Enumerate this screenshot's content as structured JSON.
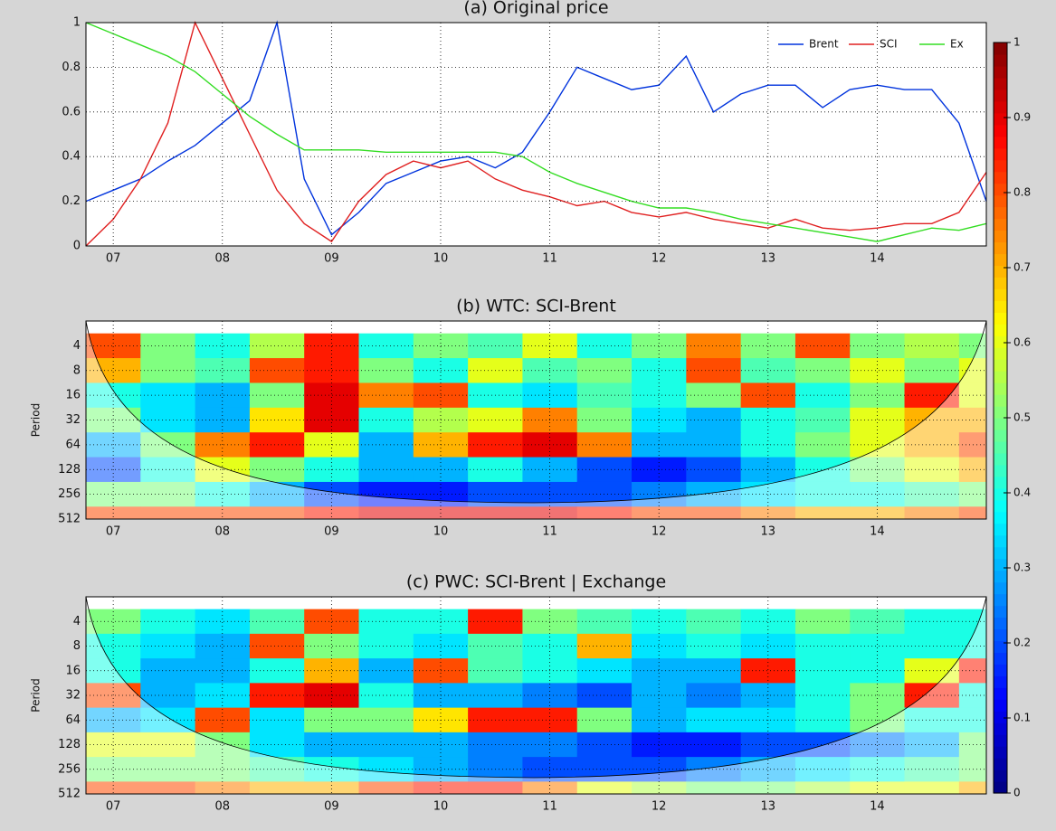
{
  "chart_data": [
    {
      "type": "line",
      "title": "(a) Original price",
      "x": [
        2006.75,
        2007,
        2007.25,
        2007.5,
        2007.75,
        2008,
        2008.25,
        2008.5,
        2008.75,
        2009,
        2009.25,
        2009.5,
        2009.75,
        2010,
        2010.25,
        2010.5,
        2010.75,
        2011,
        2011.25,
        2011.5,
        2011.75,
        2012,
        2012.25,
        2012.5,
        2012.75,
        2013,
        2013.25,
        2013.5,
        2013.75,
        2014,
        2014.25,
        2014.5,
        2014.75,
        2015
      ],
      "series": [
        {
          "name": "Brent",
          "color": "#0033dd",
          "values": [
            0.2,
            0.25,
            0.3,
            0.38,
            0.45,
            0.55,
            0.65,
            1.0,
            0.3,
            0.05,
            0.15,
            0.28,
            0.33,
            0.38,
            0.4,
            0.35,
            0.42,
            0.6,
            0.8,
            0.75,
            0.7,
            0.72,
            0.85,
            0.6,
            0.68,
            0.72,
            0.72,
            0.62,
            0.7,
            0.72,
            0.7,
            0.7,
            0.55,
            0.2
          ]
        },
        {
          "name": "SCI",
          "color": "#e02020",
          "values": [
            0,
            0.12,
            0.3,
            0.55,
            1.0,
            0.75,
            0.5,
            0.25,
            0.1,
            0.02,
            0.2,
            0.32,
            0.38,
            0.35,
            0.38,
            0.3,
            0.25,
            0.22,
            0.18,
            0.2,
            0.15,
            0.13,
            0.15,
            0.12,
            0.1,
            0.08,
            0.12,
            0.08,
            0.07,
            0.08,
            0.1,
            0.1,
            0.15,
            0.33
          ]
        },
        {
          "name": "Ex",
          "color": "#33dd22",
          "values": [
            1.0,
            0.95,
            0.9,
            0.85,
            0.78,
            0.68,
            0.58,
            0.5,
            0.43,
            0.43,
            0.43,
            0.42,
            0.42,
            0.42,
            0.42,
            0.42,
            0.4,
            0.33,
            0.28,
            0.24,
            0.2,
            0.17,
            0.17,
            0.15,
            0.12,
            0.1,
            0.08,
            0.06,
            0.04,
            0.02,
            0.05,
            0.08,
            0.07,
            0.1
          ]
        }
      ],
      "xlim": [
        2006.75,
        2015
      ],
      "xticks": [
        {
          "value": 2007,
          "label": "07"
        },
        {
          "value": 2008,
          "label": "08"
        },
        {
          "value": 2009,
          "label": "09"
        },
        {
          "value": 2010,
          "label": "10"
        },
        {
          "value": 2011,
          "label": "11"
        },
        {
          "value": 2012,
          "label": "12"
        },
        {
          "value": 2013,
          "label": "13"
        },
        {
          "value": 2014,
          "label": "14"
        }
      ],
      "ylim": [
        0,
        1
      ],
      "yticks": [
        0,
        0.2,
        0.4,
        0.6,
        0.8,
        1
      ],
      "grid": true,
      "legend": "upper right"
    },
    {
      "type": "heatmap",
      "title": "(b) WTC: SCI-Brent",
      "ylabel": "Period",
      "x": [
        2007,
        2007.5,
        2008,
        2008.5,
        2009,
        2009.5,
        2010,
        2010.5,
        2011,
        2011.5,
        2012,
        2012.5,
        2013,
        2013.5,
        2014,
        2014.5,
        2015
      ],
      "y": [
        4,
        8,
        16,
        32,
        64,
        128,
        256,
        512
      ],
      "z": [
        [
          0.8,
          0.5,
          0.4,
          0.55,
          0.85,
          0.4,
          0.5,
          0.45,
          0.6,
          0.4,
          0.5,
          0.75,
          0.5,
          0.8,
          0.5,
          0.55,
          0.5
        ],
        [
          0.7,
          0.5,
          0.45,
          0.8,
          0.85,
          0.5,
          0.4,
          0.6,
          0.45,
          0.5,
          0.4,
          0.8,
          0.45,
          0.5,
          0.6,
          0.5,
          0.6
        ],
        [
          0.4,
          0.35,
          0.3,
          0.5,
          0.9,
          0.75,
          0.8,
          0.4,
          0.35,
          0.45,
          0.4,
          0.5,
          0.8,
          0.4,
          0.5,
          0.85,
          0.6
        ],
        [
          0.5,
          0.35,
          0.3,
          0.65,
          0.9,
          0.4,
          0.55,
          0.6,
          0.75,
          0.5,
          0.35,
          0.3,
          0.4,
          0.45,
          0.6,
          0.7,
          0.7
        ],
        [
          0.3,
          0.5,
          0.75,
          0.85,
          0.6,
          0.3,
          0.7,
          0.85,
          0.9,
          0.75,
          0.3,
          0.3,
          0.4,
          0.5,
          0.6,
          0.7,
          0.8
        ],
        [
          0.2,
          0.4,
          0.6,
          0.5,
          0.4,
          0.3,
          0.3,
          0.4,
          0.3,
          0.2,
          0.15,
          0.2,
          0.3,
          0.4,
          0.5,
          0.6,
          0.7
        ],
        [
          0.5,
          0.5,
          0.4,
          0.3,
          0.2,
          0.15,
          0.15,
          0.2,
          0.2,
          0.2,
          0.25,
          0.3,
          0.35,
          0.4,
          0.4,
          0.45,
          0.5
        ],
        [
          0.8,
          0.8,
          0.8,
          0.8,
          0.85,
          0.9,
          0.9,
          0.9,
          0.9,
          0.85,
          0.8,
          0.8,
          0.75,
          0.7,
          0.7,
          0.75,
          0.8
        ]
      ],
      "xlim": [
        2006.75,
        2015
      ],
      "xticks": [
        {
          "value": 2007,
          "label": "07"
        },
        {
          "value": 2008,
          "label": "08"
        },
        {
          "value": 2009,
          "label": "09"
        },
        {
          "value": 2010,
          "label": "10"
        },
        {
          "value": 2011,
          "label": "11"
        },
        {
          "value": 2012,
          "label": "12"
        },
        {
          "value": 2013,
          "label": "13"
        },
        {
          "value": 2014,
          "label": "14"
        }
      ],
      "ylim": [
        512,
        2
      ],
      "yscale": "log",
      "yticks": [
        4,
        8,
        16,
        32,
        64,
        128,
        256,
        512
      ],
      "grid": true,
      "zlim": [
        0,
        1
      ],
      "zticks": [
        0,
        0.1,
        0.2,
        0.3,
        0.4,
        0.5,
        0.6,
        0.7,
        0.8,
        0.9,
        1
      ]
    },
    {
      "type": "heatmap",
      "title": "(c) PWC: SCI-Brent | Exchange",
      "ylabel": "Period",
      "x": [
        2007,
        2007.5,
        2008,
        2008.5,
        2009,
        2009.5,
        2010,
        2010.5,
        2011,
        2011.5,
        2012,
        2012.5,
        2013,
        2013.5,
        2014,
        2014.5,
        2015
      ],
      "y": [
        4,
        8,
        16,
        32,
        64,
        128,
        256,
        512
      ],
      "z": [
        [
          0.5,
          0.4,
          0.35,
          0.45,
          0.8,
          0.4,
          0.4,
          0.85,
          0.5,
          0.45,
          0.4,
          0.45,
          0.4,
          0.5,
          0.45,
          0.4,
          0.4
        ],
        [
          0.4,
          0.35,
          0.3,
          0.8,
          0.5,
          0.4,
          0.35,
          0.45,
          0.4,
          0.7,
          0.35,
          0.4,
          0.35,
          0.4,
          0.4,
          0.4,
          0.4
        ],
        [
          0.4,
          0.3,
          0.3,
          0.4,
          0.7,
          0.3,
          0.8,
          0.45,
          0.4,
          0.35,
          0.3,
          0.3,
          0.85,
          0.4,
          0.4,
          0.6,
          0.85
        ],
        [
          0.8,
          0.3,
          0.35,
          0.85,
          0.9,
          0.4,
          0.3,
          0.3,
          0.25,
          0.2,
          0.3,
          0.25,
          0.3,
          0.4,
          0.5,
          0.85,
          0.4
        ],
        [
          0.3,
          0.35,
          0.8,
          0.35,
          0.5,
          0.5,
          0.65,
          0.85,
          0.85,
          0.5,
          0.3,
          0.35,
          0.35,
          0.4,
          0.5,
          0.4,
          0.4
        ],
        [
          0.6,
          0.6,
          0.5,
          0.35,
          0.3,
          0.3,
          0.3,
          0.25,
          0.25,
          0.2,
          0.15,
          0.15,
          0.2,
          0.2,
          0.25,
          0.3,
          0.5
        ],
        [
          0.5,
          0.5,
          0.5,
          0.45,
          0.4,
          0.35,
          0.3,
          0.25,
          0.2,
          0.2,
          0.2,
          0.25,
          0.3,
          0.35,
          0.4,
          0.45,
          0.5
        ],
        [
          0.8,
          0.8,
          0.75,
          0.7,
          0.7,
          0.8,
          0.85,
          0.85,
          0.75,
          0.6,
          0.55,
          0.5,
          0.5,
          0.55,
          0.6,
          0.6,
          0.7
        ]
      ],
      "xlim": [
        2006.75,
        2015
      ],
      "xticks": [
        {
          "value": 2007,
          "label": "07"
        },
        {
          "value": 2008,
          "label": "08"
        },
        {
          "value": 2009,
          "label": "09"
        },
        {
          "value": 2010,
          "label": "10"
        },
        {
          "value": 2011,
          "label": "11"
        },
        {
          "value": 2012,
          "label": "12"
        },
        {
          "value": 2013,
          "label": "13"
        },
        {
          "value": 2014,
          "label": "14"
        }
      ],
      "ylim": [
        512,
        2
      ],
      "yscale": "log",
      "yticks": [
        4,
        8,
        16,
        32,
        64,
        128,
        256,
        512
      ],
      "grid": true,
      "zlim": [
        0,
        1
      ],
      "zticks": [
        0,
        0.1,
        0.2,
        0.3,
        0.4,
        0.5,
        0.6,
        0.7,
        0.8,
        0.9,
        1
      ]
    }
  ]
}
